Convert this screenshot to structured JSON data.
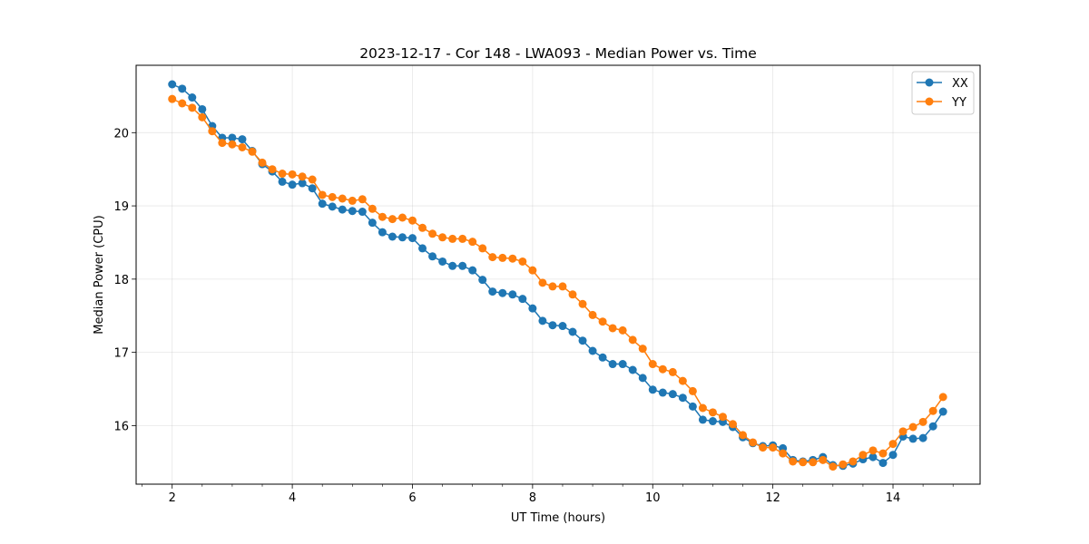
{
  "chart_data": {
    "type": "line",
    "title": "2023-12-17 - Cor 148 - LWA093 - Median Power vs. Time",
    "xlabel": "UT Time (hours)",
    "ylabel": "Median Power (CPU)",
    "xlim": [
      1.4,
      15.45
    ],
    "ylim": [
      15.2,
      20.92
    ],
    "xticks": [
      2,
      4,
      6,
      8,
      10,
      12,
      14
    ],
    "xtick_labels": [
      "2",
      "4",
      "6",
      "8",
      "10",
      "12",
      "14"
    ],
    "xminor_step": 0.5,
    "yticks": [
      16,
      17,
      18,
      19,
      20
    ],
    "ytick_labels": [
      "16",
      "17",
      "18",
      "19",
      "20"
    ],
    "grid": true,
    "legend_position": "top-right",
    "x": [
      2.0,
      2.1667,
      2.3333,
      2.5,
      2.6667,
      2.8333,
      3.0,
      3.1667,
      3.3333,
      3.5,
      3.6667,
      3.8333,
      4.0,
      4.1667,
      4.3333,
      4.5,
      4.6667,
      4.8333,
      5.0,
      5.1667,
      5.3333,
      5.5,
      5.6667,
      5.8333,
      6.0,
      6.1667,
      6.3333,
      6.5,
      6.6667,
      6.8333,
      7.0,
      7.1667,
      7.3333,
      7.5,
      7.6667,
      7.8333,
      8.0,
      8.1667,
      8.3333,
      8.5,
      8.6667,
      8.8333,
      9.0,
      9.1667,
      9.3333,
      9.5,
      9.6667,
      9.8333,
      10.0,
      10.1667,
      10.3333,
      10.5,
      10.6667,
      10.8333,
      11.0,
      11.1667,
      11.3333,
      11.5,
      11.6667,
      11.8333,
      12.0,
      12.1667,
      12.3333,
      12.5,
      12.6667,
      12.8333,
      13.0,
      13.1667,
      13.3333,
      13.5,
      13.6667,
      13.8333,
      14.0,
      14.1667,
      14.3333,
      14.5,
      14.6667,
      14.8333
    ],
    "series": [
      {
        "name": "XX",
        "color": "#1f77b4",
        "values": [
          20.66,
          20.6,
          20.48,
          20.32,
          20.09,
          19.93,
          19.93,
          19.91,
          19.75,
          19.57,
          19.47,
          19.33,
          19.29,
          19.31,
          19.24,
          19.03,
          18.99,
          18.95,
          18.93,
          18.92,
          18.77,
          18.64,
          18.58,
          18.57,
          18.56,
          18.42,
          18.31,
          18.24,
          18.18,
          18.18,
          18.12,
          17.99,
          17.83,
          17.81,
          17.79,
          17.73,
          17.6,
          17.43,
          17.37,
          17.36,
          17.28,
          17.16,
          17.02,
          16.93,
          16.84,
          16.84,
          16.76,
          16.65,
          16.49,
          16.45,
          16.43,
          16.38,
          16.26,
          16.08,
          16.06,
          16.05,
          15.98,
          15.84,
          15.76,
          15.72,
          15.73,
          15.69,
          15.53,
          15.51,
          15.53,
          15.57,
          15.46,
          15.45,
          15.48,
          15.54,
          15.57,
          15.49,
          15.6,
          15.85,
          15.82,
          15.83,
          15.99,
          16.19
        ]
      },
      {
        "name": "YY",
        "color": "#ff7f0e",
        "values": [
          20.46,
          20.4,
          20.34,
          20.21,
          20.02,
          19.86,
          19.84,
          19.8,
          19.74,
          19.59,
          19.5,
          19.44,
          19.43,
          19.4,
          19.36,
          19.15,
          19.12,
          19.1,
          19.07,
          19.09,
          18.96,
          18.85,
          18.82,
          18.84,
          18.8,
          18.7,
          18.62,
          18.57,
          18.55,
          18.55,
          18.51,
          18.42,
          18.3,
          18.29,
          18.28,
          18.24,
          18.12,
          17.95,
          17.9,
          17.9,
          17.79,
          17.66,
          17.51,
          17.42,
          17.33,
          17.3,
          17.17,
          17.05,
          16.84,
          16.77,
          16.73,
          16.61,
          16.47,
          16.24,
          16.18,
          16.12,
          16.02,
          15.87,
          15.77,
          15.7,
          15.7,
          15.62,
          15.51,
          15.5,
          15.5,
          15.53,
          15.44,
          15.47,
          15.51,
          15.6,
          15.66,
          15.62,
          15.75,
          15.92,
          15.98,
          16.05,
          16.2,
          16.39
        ]
      }
    ]
  }
}
